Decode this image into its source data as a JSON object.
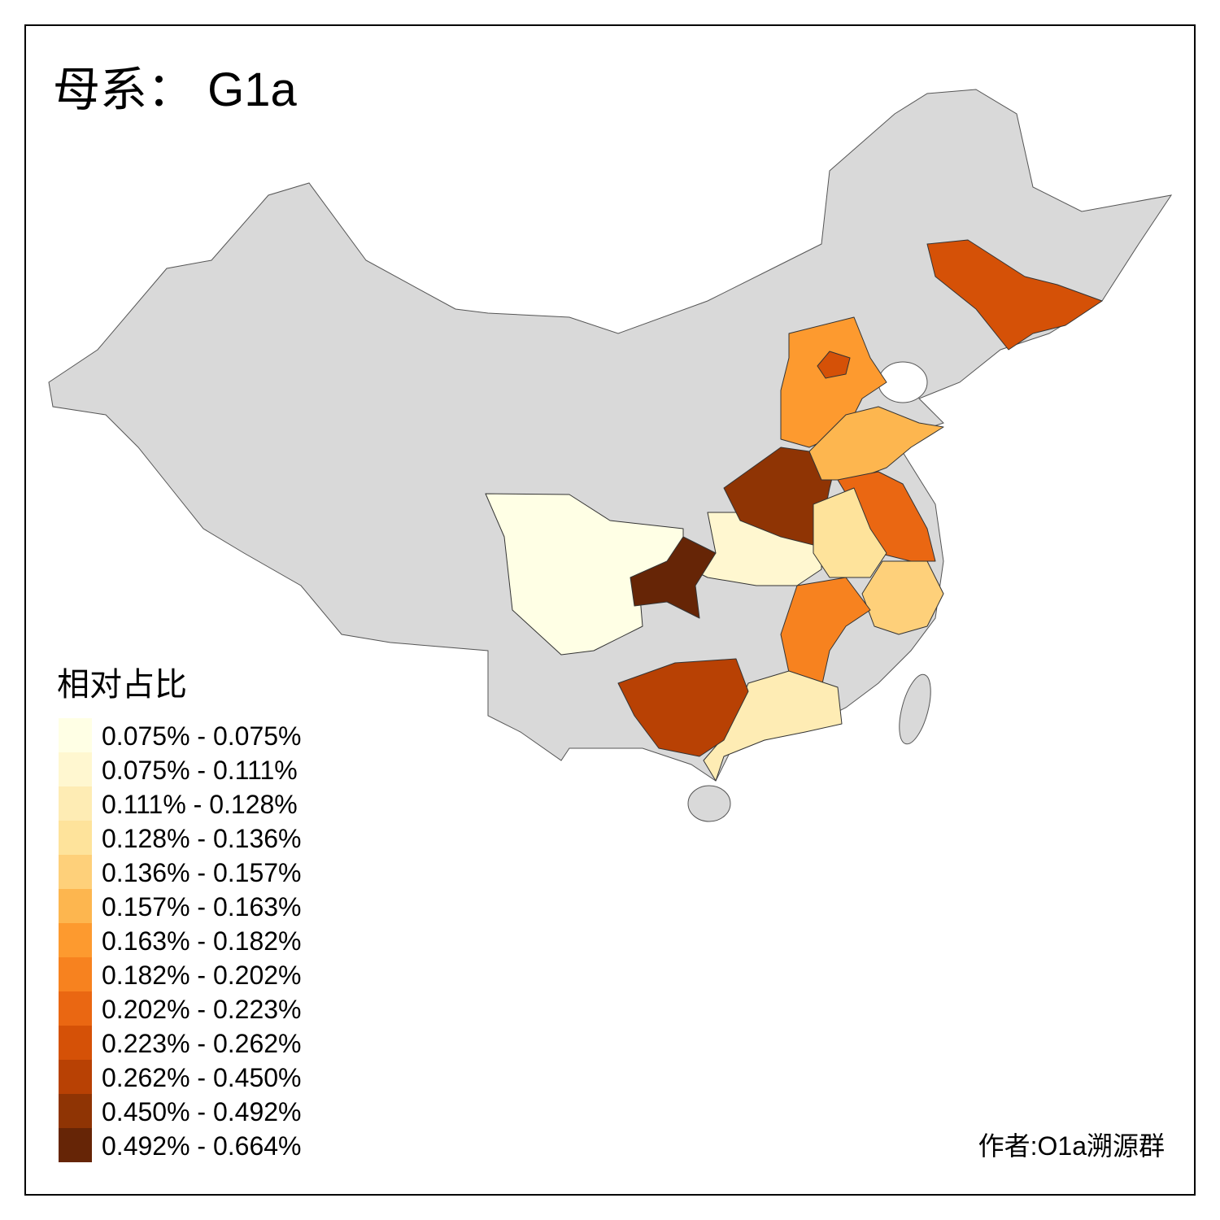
{
  "title": "母系： G1a",
  "legend": {
    "title": "相对占比",
    "items": [
      {
        "label": "0.075% - 0.075%",
        "color": "#ffffe5"
      },
      {
        "label": "0.075% - 0.111%",
        "color": "#fff7d0"
      },
      {
        "label": "0.111% - 0.128%",
        "color": "#feecb4"
      },
      {
        "label": "0.128% - 0.136%",
        "color": "#fee39b"
      },
      {
        "label": "0.136% - 0.157%",
        "color": "#fed07a"
      },
      {
        "label": "0.157% - 0.163%",
        "color": "#fdb64f"
      },
      {
        "label": "0.163% - 0.182%",
        "color": "#fd9a2f"
      },
      {
        "label": "0.182% - 0.202%",
        "color": "#f7821f"
      },
      {
        "label": "0.202% - 0.223%",
        "color": "#ea6712"
      },
      {
        "label": "0.223% - 0.262%",
        "color": "#d55107"
      },
      {
        "label": "0.262% - 0.450%",
        "color": "#b84104"
      },
      {
        "label": "0.450% - 0.492%",
        "color": "#8f3404"
      },
      {
        "label": "0.492% - 0.664%",
        "color": "#662506"
      }
    ]
  },
  "author": "作者:O1a溯源群"
}
